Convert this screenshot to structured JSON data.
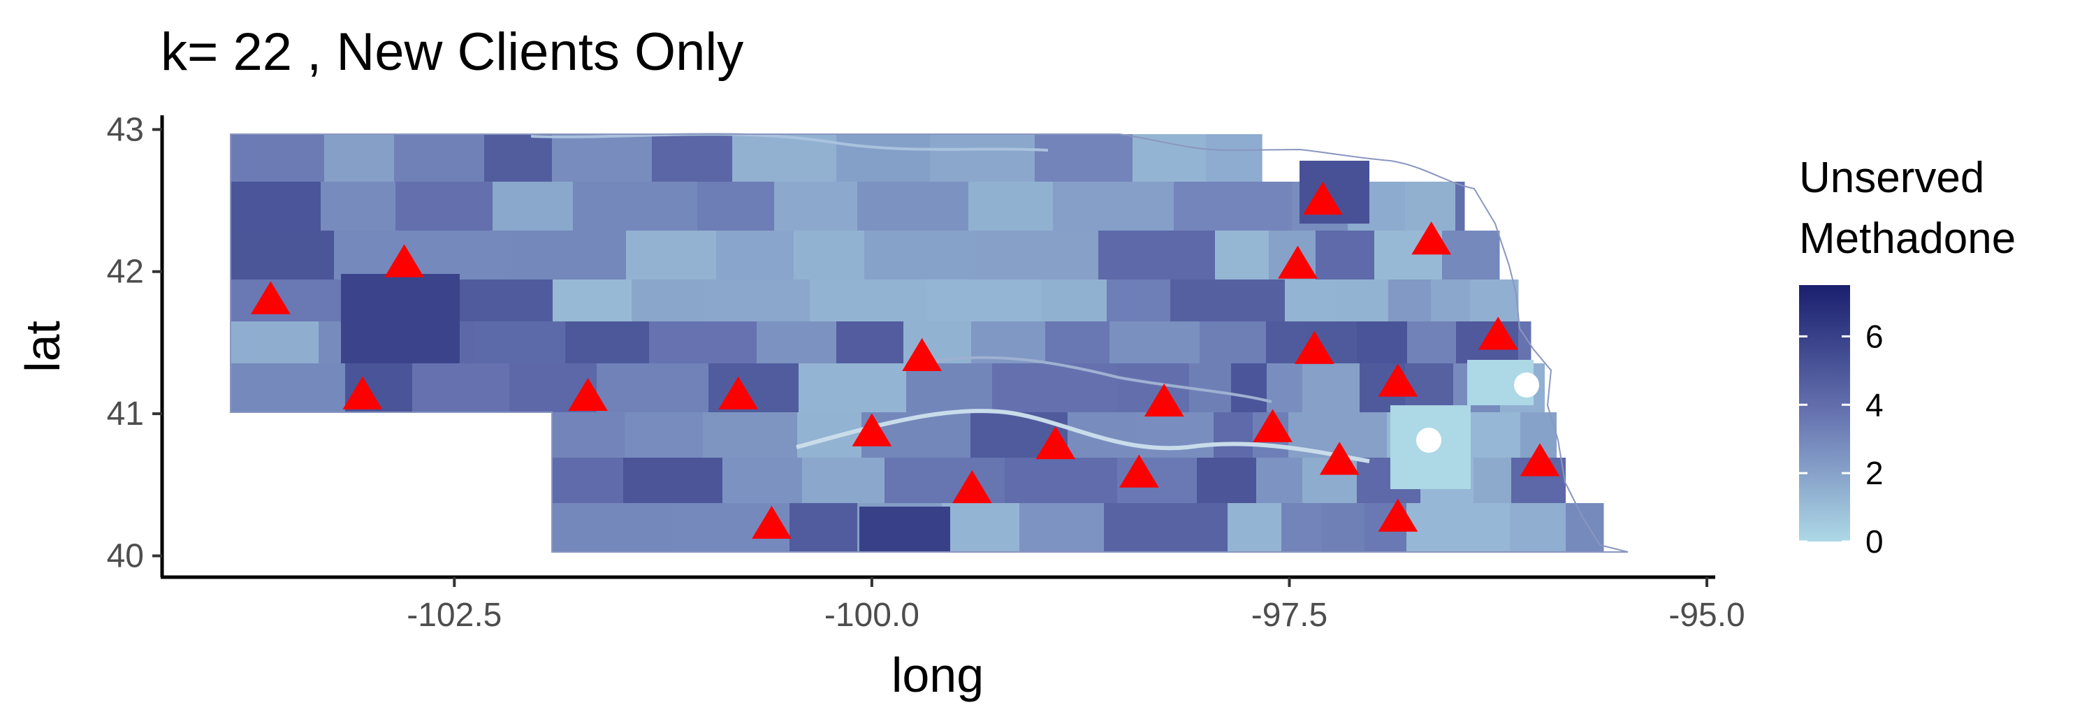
{
  "title": "k= 22 , New Clients Only",
  "chart_data": {
    "type": "choropleth",
    "xlabel": "long",
    "ylabel": "lat",
    "xlim": [
      -104.25,
      -94.95
    ],
    "ylim": [
      39.85,
      43.1
    ],
    "x_ticks": [
      {
        "value": -102.5,
        "label": "-102.5"
      },
      {
        "value": -100.0,
        "label": "-100.0"
      },
      {
        "value": -97.5,
        "label": "-97.5"
      },
      {
        "value": -95.0,
        "label": "-95.0"
      }
    ],
    "y_ticks": [
      {
        "value": 40,
        "label": "40"
      },
      {
        "value": 41,
        "label": "41"
      },
      {
        "value": 42,
        "label": "42"
      },
      {
        "value": 43,
        "label": "43"
      }
    ],
    "legend": {
      "title_line1": "Unserved",
      "title_line2": "Methadone",
      "min": 0,
      "max": 7.5,
      "low_color": "#add8e6",
      "high_color": "#1a1f6e",
      "ticks": [
        {
          "value": 0,
          "label": "0"
        },
        {
          "value": 2,
          "label": "2"
        },
        {
          "value": 4,
          "label": "4"
        },
        {
          "value": 6,
          "label": "6"
        }
      ]
    },
    "marker_color": "#ff0000",
    "triangles": [
      {
        "long": -103.6,
        "lat": 41.8
      },
      {
        "long": -102.8,
        "lat": 42.06
      },
      {
        "long": -103.05,
        "lat": 41.13
      },
      {
        "long": -101.7,
        "lat": 41.12
      },
      {
        "long": -100.8,
        "lat": 41.13
      },
      {
        "long": -100.6,
        "lat": 40.22
      },
      {
        "long": -99.7,
        "lat": 41.4
      },
      {
        "long": -100.0,
        "lat": 40.87
      },
      {
        "long": -99.4,
        "lat": 40.47
      },
      {
        "long": -98.9,
        "lat": 40.78
      },
      {
        "long": -98.25,
        "lat": 41.08
      },
      {
        "long": -98.4,
        "lat": 40.58
      },
      {
        "long": -97.6,
        "lat": 40.9
      },
      {
        "long": -97.45,
        "lat": 42.05
      },
      {
        "long": -97.3,
        "lat": 42.5
      },
      {
        "long": -97.35,
        "lat": 41.45
      },
      {
        "long": -97.2,
        "lat": 40.67
      },
      {
        "long": -96.85,
        "lat": 41.22
      },
      {
        "long": -96.65,
        "lat": 42.22
      },
      {
        "long": -96.25,
        "lat": 41.55
      },
      {
        "long": -96.85,
        "lat": 40.27
      },
      {
        "long": -96.0,
        "lat": 40.66
      }
    ]
  }
}
